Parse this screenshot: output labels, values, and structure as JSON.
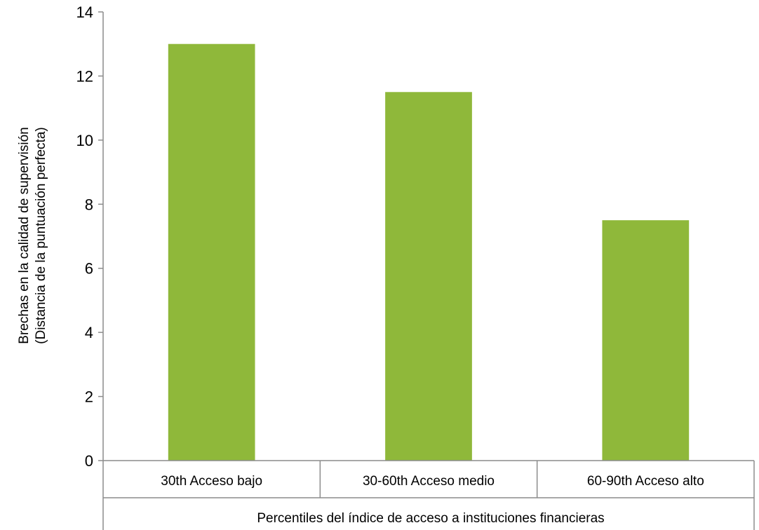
{
  "chart_data": {
    "type": "bar",
    "categories": [
      "30th Acceso bajo",
      "30-60th Acceso medio",
      "60-90th Acceso alto"
    ],
    "values": [
      13,
      11.5,
      7.5
    ],
    "title": "",
    "xlabel": "Percentiles del índice de acceso a instituciones financieras",
    "ylabel_lines": [
      "Brechas en la calidad de supervisión",
      "(Distancia de la puntuación perfecta)"
    ],
    "ylim": [
      0,
      14
    ],
    "yticks": [
      0,
      2,
      4,
      6,
      8,
      10,
      12,
      14
    ],
    "grid": false,
    "legend": "none",
    "bar_color": "#8FB83A",
    "axis_color": "#8C8C8C"
  }
}
